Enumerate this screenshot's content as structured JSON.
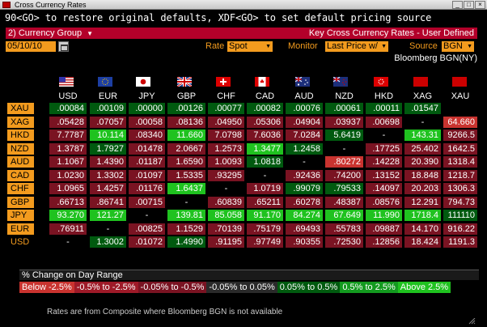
{
  "window": {
    "title": "Cross Currency Rates"
  },
  "command_line": "90<GO> to restore original defaults, XDF<GO> to set default pricing source",
  "toolbar": {
    "group_label": "2)  Currency Group",
    "title": "Key Cross Currency Rates - User Defined",
    "date": "05/10/10",
    "rate_label": "Rate",
    "rate_value": "Spot",
    "monitor_label": "Monitor",
    "monitor_value": "Last Price w/",
    "source_label": "Source",
    "source_value": "BGN",
    "source_caption": "Bloomberg BGN(NY)"
  },
  "columns": [
    "USD",
    "EUR",
    "JPY",
    "GBP",
    "CHF",
    "CAD",
    "AUD",
    "NZD",
    "HKD",
    "XAG",
    "XAU"
  ],
  "rows": [
    {
      "label": "XAU",
      "cells": [
        ".00084",
        ".00109",
        ".00000",
        ".00126",
        ".00077",
        ".00082",
        ".00076",
        ".00061",
        ".00011",
        ".01547",
        ""
      ],
      "colors": [
        "dg",
        "dg",
        "dg",
        "dg",
        "dg",
        "dg",
        "dg",
        "dg",
        "dg",
        "dg",
        "blk"
      ]
    },
    {
      "label": "XAG",
      "cells": [
        ".05428",
        ".07057",
        ".00058",
        ".08136",
        ".04950",
        ".05306",
        ".04904",
        ".03937",
        ".00698",
        "-",
        "64.660"
      ],
      "colors": [
        "dr",
        "dr",
        "dr",
        "dr",
        "dr",
        "dr",
        "dr",
        "dr",
        "dr",
        "blk",
        "br2"
      ]
    },
    {
      "label": "HKD",
      "cells": [
        "7.7787",
        "10.114",
        ".08340",
        "11.660",
        "7.0798",
        "7.6036",
        "7.0284",
        "5.6419",
        "-",
        "143.31",
        "9266.5"
      ],
      "colors": [
        "dr",
        "br",
        "dr",
        "br",
        "dr",
        "dr",
        "dr",
        "dg",
        "blk",
        "br",
        "dr"
      ]
    },
    {
      "label": "NZD",
      "cells": [
        "1.3787",
        "1.7927",
        ".01478",
        "2.0667",
        "1.2573",
        "1.3477",
        "1.2458",
        "-",
        ".17725",
        "25.402",
        "1642.5"
      ],
      "colors": [
        "dr",
        "dg",
        "dr",
        "dr",
        "dr",
        "br",
        "dg",
        "blk",
        "dr",
        "dr",
        "dr"
      ]
    },
    {
      "label": "AUD",
      "cells": [
        "1.1067",
        "1.4390",
        ".01187",
        "1.6590",
        "1.0093",
        "1.0818",
        "-",
        ".80272",
        ".14228",
        "20.390",
        "1318.4"
      ],
      "colors": [
        "dr",
        "dr",
        "dr",
        "dr",
        "dr",
        "dg",
        "blk",
        "br2",
        "dr",
        "dr",
        "dr"
      ]
    },
    {
      "label": "CAD",
      "cells": [
        "1.0230",
        "1.3302",
        ".01097",
        "1.5335",
        ".93295",
        "-",
        ".92436",
        ".74200",
        ".13152",
        "18.848",
        "1218.7"
      ],
      "colors": [
        "dr",
        "dr",
        "dr",
        "dr",
        "dr",
        "blk",
        "dr",
        "dr",
        "dr",
        "dr",
        "dr"
      ]
    },
    {
      "label": "CHF",
      "cells": [
        "1.0965",
        "1.4257",
        ".01176",
        "1.6437",
        "-",
        "1.0719",
        ".99079",
        ".79533",
        ".14097",
        "20.203",
        "1306.3"
      ],
      "colors": [
        "dr",
        "dr",
        "dr",
        "br",
        "blk",
        "dr",
        "dg",
        "dg",
        "dr",
        "dr",
        "dr"
      ]
    },
    {
      "label": "GBP",
      "cells": [
        ".66713",
        ".86741",
        ".00715",
        "-",
        ".60839",
        ".65211",
        ".60278",
        ".48387",
        ".08576",
        "12.291",
        "794.73"
      ],
      "colors": [
        "dr",
        "dr",
        "dr",
        "blk",
        "dr",
        "dr",
        "dr",
        "dr",
        "dr",
        "dr",
        "dr"
      ]
    },
    {
      "label": "JPY",
      "cells": [
        "93.270",
        "121.27",
        "-",
        "139.81",
        "85.058",
        "91.170",
        "84.274",
        "67.649",
        "11.990",
        "1718.4",
        "111110"
      ],
      "colors": [
        "br",
        "br",
        "blk",
        "br",
        "br",
        "br",
        "br",
        "br",
        "br",
        "br",
        "dg"
      ]
    },
    {
      "label": "EUR",
      "cells": [
        ".76911",
        "-",
        ".00825",
        "1.1529",
        ".70139",
        ".75179",
        ".69493",
        ".55783",
        ".09887",
        "14.170",
        "916.22"
      ],
      "colors": [
        "dr",
        "blk",
        "dr",
        "dr",
        "dr",
        "dr",
        "dr",
        "dr",
        "dr",
        "dr",
        "dr"
      ]
    },
    {
      "label": "USD",
      "cells": [
        "-",
        "1.3002",
        ".01072",
        "1.4990",
        ".91195",
        ".97749",
        ".90355",
        ".72530",
        ".12856",
        "18.424",
        "1191.3"
      ],
      "colors": [
        "blk",
        "dg",
        "dr",
        "dg",
        "dr",
        "dr",
        "dr",
        "dr",
        "dr",
        "dr",
        "dr"
      ]
    }
  ],
  "legend": {
    "title": "% Change on Day Range",
    "items": [
      {
        "label": "Below -2.5%",
        "color": "#c9332f"
      },
      {
        "label": "-0.5% to -2.5%",
        "color": "#9e1a28"
      },
      {
        "label": "-0.05% to -0.5%",
        "color": "#7a1322"
      },
      {
        "label": "-0.05% to 0.05%",
        "color": "#2a2a2a"
      },
      {
        "label": "0.05% to 0.5%",
        "color": "#005a0f"
      },
      {
        "label": "0.5% to 2.5%",
        "color": "#139a1f"
      },
      {
        "label": "Above 2.5%",
        "color": "#1fc21f"
      }
    ]
  },
  "footnote": "Rates are from Composite where Bloomberg BGN is not available"
}
